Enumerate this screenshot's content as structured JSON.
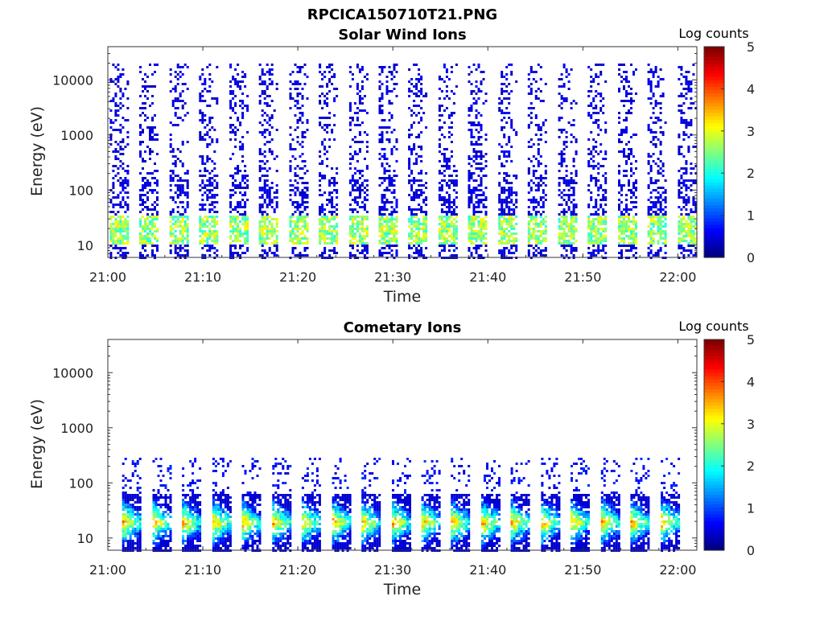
{
  "figure": {
    "title": "RPCICA150710T21.PNG"
  },
  "chart_data": [
    {
      "type": "heatmap",
      "title": "Solar Wind Ions",
      "xlabel": "Time",
      "ylabel": "Energy (eV)",
      "x_ticks": [
        "21:00",
        "21:10",
        "21:20",
        "21:30",
        "21:40",
        "21:50",
        "22:00"
      ],
      "xlim": [
        "21:00",
        "22:02"
      ],
      "y_scale": "log",
      "y_ticks": [
        10,
        100,
        1000,
        10000
      ],
      "y_tick_labels": [
        "10",
        "100",
        "1000",
        "10000"
      ],
      "ylim": [
        6,
        40000
      ],
      "colorbar": {
        "label": "Log counts",
        "range": [
          0,
          5
        ],
        "ticks": [
          "0",
          "1",
          "2",
          "3",
          "4",
          "5"
        ],
        "colormap": "jet"
      },
      "description_points": {
        "burst_start_minutes": [
          0.2,
          3.3,
          6.5,
          9.6,
          12.8,
          15.9,
          19.1,
          22.2,
          25.4,
          28.5,
          31.6,
          34.8,
          37.9,
          41.1,
          44.2,
          47.4,
          50.5,
          53.7,
          56.8,
          60.0
        ],
        "energy_range_eV": [
          6,
          20000
        ],
        "peak_energy_eV": 20,
        "peak_log_counts": 2.0,
        "background_log_counts": 0.3
      },
      "grid": false
    },
    {
      "type": "heatmap",
      "title": "Cometary Ions",
      "xlabel": "Time",
      "ylabel": "Energy (eV)",
      "x_ticks": [
        "21:00",
        "21:10",
        "21:20",
        "21:30",
        "21:40",
        "21:50",
        "22:00"
      ],
      "xlim": [
        "21:00",
        "22:02"
      ],
      "y_scale": "log",
      "y_ticks": [
        10,
        100,
        1000,
        10000
      ],
      "y_tick_labels": [
        "10",
        "100",
        "1000",
        "10000"
      ],
      "ylim": [
        6,
        40000
      ],
      "colorbar": {
        "label": "Log counts",
        "range": [
          0,
          5
        ],
        "ticks": [
          "0",
          "1",
          "2",
          "3",
          "4",
          "5"
        ],
        "colormap": "jet"
      },
      "description_points": {
        "burst_start_minutes": [
          1.5,
          4.7,
          7.8,
          11.0,
          14.1,
          17.3,
          20.4,
          23.6,
          26.7,
          29.9,
          33.0,
          36.1,
          39.3,
          42.4,
          45.6,
          48.7,
          51.9,
          55.0,
          58.2
        ],
        "energy_range_eV": [
          6,
          300
        ],
        "peak_energy_eV": 20,
        "peak_log_counts": 3.6,
        "background_log_counts": 0.3
      },
      "grid": false
    }
  ]
}
